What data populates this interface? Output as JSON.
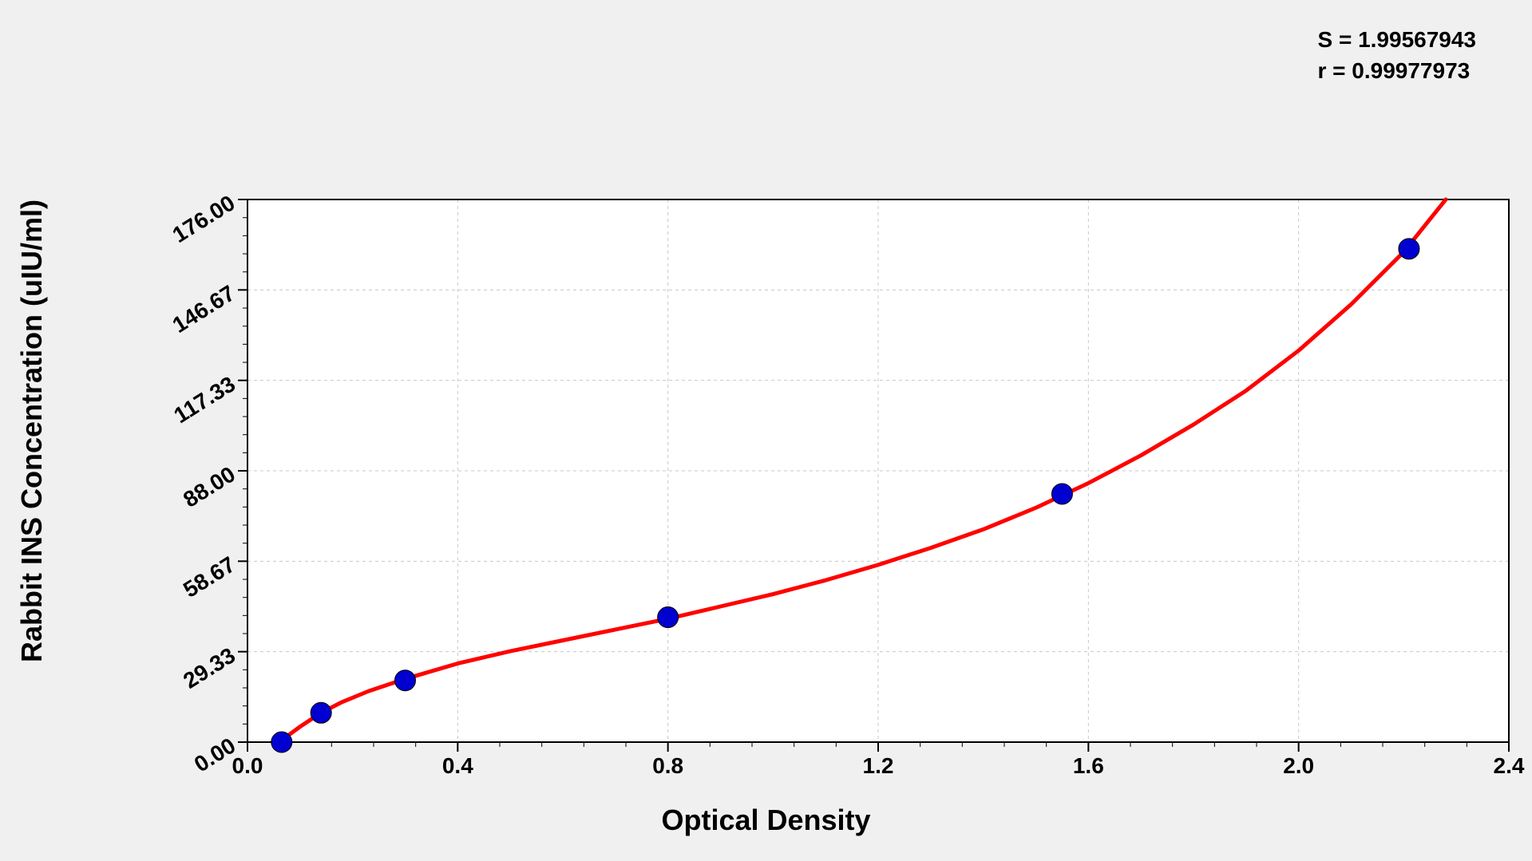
{
  "stats": {
    "s_label": "S = 1.99567943",
    "r_label": "r = 0.99977973"
  },
  "chart": {
    "type": "scatter-with-curve",
    "y_axis_label": "Rabbit INS Concentration (uIU/ml)",
    "x_axis_label": "Optical Density",
    "background_color": "#ffffff",
    "page_background_color": "#f0f0f0",
    "axis_color": "#000000",
    "grid_color": "#c8c8c8",
    "grid_dash": "4,4",
    "text_color": "#000000",
    "xlim": [
      0.0,
      2.4
    ],
    "ylim": [
      0.0,
      176.0
    ],
    "x_ticks": [
      {
        "value": 0.0,
        "label": "0.0"
      },
      {
        "value": 0.4,
        "label": "0.4"
      },
      {
        "value": 0.8,
        "label": "0.8"
      },
      {
        "value": 1.2,
        "label": "1.2"
      },
      {
        "value": 1.6,
        "label": "1.6"
      },
      {
        "value": 2.0,
        "label": "2.0"
      },
      {
        "value": 2.4,
        "label": "2.4"
      }
    ],
    "y_ticks": [
      {
        "value": 0.0,
        "label": "0.00"
      },
      {
        "value": 29.33,
        "label": "29.33"
      },
      {
        "value": 58.67,
        "label": "58.67"
      },
      {
        "value": 88.0,
        "label": "88.00"
      },
      {
        "value": 117.33,
        "label": "117.33"
      },
      {
        "value": 146.67,
        "label": "146.67"
      },
      {
        "value": 176.0,
        "label": "176.00"
      }
    ],
    "x_minor_subdiv": 5,
    "y_minor_subdiv": 5,
    "points": [
      {
        "x": 0.065,
        "y": 0.0
      },
      {
        "x": 0.14,
        "y": 9.5
      },
      {
        "x": 0.3,
        "y": 20.0
      },
      {
        "x": 0.8,
        "y": 40.5
      },
      {
        "x": 1.55,
        "y": 80.5
      },
      {
        "x": 2.21,
        "y": 160.0
      }
    ],
    "point_color": "#0000d0",
    "point_stroke": "#000000",
    "point_radius": 13,
    "curve_color": "#ff0000",
    "curve_width": 5,
    "curve": [
      {
        "x": 0.065,
        "y": 0.0
      },
      {
        "x": 0.08,
        "y": 2.5
      },
      {
        "x": 0.1,
        "y": 5.0
      },
      {
        "x": 0.14,
        "y": 9.5
      },
      {
        "x": 0.18,
        "y": 13.0
      },
      {
        "x": 0.23,
        "y": 16.5
      },
      {
        "x": 0.3,
        "y": 20.5
      },
      {
        "x": 0.4,
        "y": 25.5
      },
      {
        "x": 0.5,
        "y": 29.5
      },
      {
        "x": 0.6,
        "y": 33.0
      },
      {
        "x": 0.7,
        "y": 36.5
      },
      {
        "x": 0.8,
        "y": 40.0
      },
      {
        "x": 0.9,
        "y": 44.0
      },
      {
        "x": 1.0,
        "y": 48.0
      },
      {
        "x": 1.1,
        "y": 52.5
      },
      {
        "x": 1.2,
        "y": 57.5
      },
      {
        "x": 1.3,
        "y": 63.0
      },
      {
        "x": 1.4,
        "y": 69.0
      },
      {
        "x": 1.5,
        "y": 76.0
      },
      {
        "x": 1.55,
        "y": 80.0
      },
      {
        "x": 1.6,
        "y": 84.0
      },
      {
        "x": 1.7,
        "y": 93.0
      },
      {
        "x": 1.8,
        "y": 103.0
      },
      {
        "x": 1.9,
        "y": 114.0
      },
      {
        "x": 2.0,
        "y": 127.0
      },
      {
        "x": 2.1,
        "y": 142.0
      },
      {
        "x": 2.2,
        "y": 159.0
      },
      {
        "x": 2.28,
        "y": 176.0
      }
    ],
    "axis_label_fontsize": 36,
    "tick_fontsize": 28,
    "stats_fontsize": 28
  }
}
